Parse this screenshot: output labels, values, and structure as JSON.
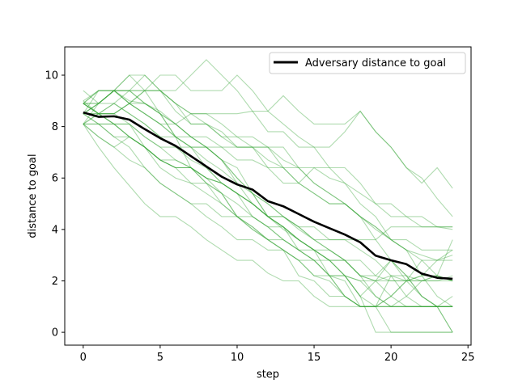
{
  "chart_data": {
    "type": "line",
    "title": "",
    "xlabel": "step",
    "ylabel": "distance to goal",
    "xlim": [
      -1.2,
      25.2
    ],
    "ylim": [
      -0.5,
      11.1
    ],
    "xticks": [
      0,
      5,
      10,
      15,
      20,
      25
    ],
    "yticks": [
      0,
      2,
      4,
      6,
      8,
      10
    ],
    "grid": false,
    "legend_position": "top-right",
    "x": [
      0,
      1,
      2,
      3,
      4,
      5,
      6,
      7,
      8,
      9,
      10,
      11,
      12,
      13,
      14,
      15,
      16,
      17,
      18,
      19,
      20,
      21,
      22,
      23,
      24
    ],
    "mean_series": {
      "name": "Adversary distance to goal",
      "color": "#000000",
      "values": [
        8.55,
        8.38,
        8.4,
        8.27,
        7.9,
        7.55,
        7.25,
        6.85,
        6.45,
        6.05,
        5.75,
        5.55,
        5.1,
        4.9,
        4.6,
        4.3,
        4.05,
        3.8,
        3.5,
        2.98,
        2.8,
        2.65,
        2.28,
        2.12,
        2.08
      ]
    },
    "trajectory_color": "#2ca02c",
    "trajectories": [
      {
        "values": [
          9.4,
          8.9,
          9.4,
          8.9,
          9.4,
          9.4,
          8.9,
          8.5,
          8.5,
          8.1,
          7.6,
          7.2,
          6.7,
          6.4,
          5.8,
          5.4,
          5.0,
          5.0,
          4.5,
          4.1,
          3.6,
          3.6,
          3.2,
          3.2,
          3.2
        ]
      },
      {
        "values": [
          8.1,
          7.2,
          6.4,
          5.7,
          5.0,
          4.5,
          4.5,
          4.1,
          3.6,
          3.2,
          2.8,
          2.8,
          2.3,
          2.0,
          2.0,
          1.4,
          1.0,
          1.0,
          1.0,
          1.0,
          1.4,
          1.0,
          1.0,
          1.0,
          1.0
        ]
      },
      {
        "values": [
          8.9,
          9.4,
          9.4,
          9.4,
          10.0,
          9.4,
          9.4,
          10.0,
          10.6,
          10.0,
          9.4,
          8.6,
          8.6,
          8.1,
          7.6,
          7.2,
          6.4,
          6.4,
          5.8,
          5.0,
          5.0,
          4.5,
          4.5,
          4.1,
          4.1
        ]
      },
      {
        "values": [
          8.5,
          9.4,
          9.4,
          9.4,
          8.9,
          8.5,
          8.1,
          7.6,
          7.6,
          7.2,
          6.7,
          6.7,
          6.4,
          6.4,
          6.4,
          5.8,
          5.4,
          5.0,
          4.5,
          4.0,
          3.6,
          3.2,
          3.0,
          2.8,
          2.8
        ]
      },
      {
        "values": [
          8.5,
          8.9,
          9.4,
          9.4,
          9.4,
          8.5,
          7.6,
          7.2,
          6.7,
          6.3,
          5.8,
          5.4,
          5.0,
          4.5,
          4.0,
          3.6,
          3.2,
          2.8,
          2.2,
          2.0,
          2.0,
          2.0,
          1.4,
          1.0,
          0.0
        ]
      },
      {
        "values": [
          8.1,
          7.6,
          7.2,
          7.6,
          7.2,
          6.7,
          6.4,
          6.4,
          6.0,
          5.8,
          5.4,
          5.0,
          4.5,
          4.1,
          3.6,
          3.2,
          3.2,
          2.8,
          2.2,
          1.4,
          1.0,
          1.0,
          1.0,
          1.0,
          1.0
        ]
      },
      {
        "values": [
          8.9,
          8.9,
          9.4,
          8.9,
          8.5,
          8.1,
          7.6,
          7.6,
          7.2,
          6.7,
          6.0,
          5.4,
          4.5,
          4.1,
          3.6,
          3.2,
          2.2,
          2.2,
          1.4,
          0.0,
          0.0,
          0.0,
          0.0,
          0.0,
          0.0
        ]
      },
      {
        "values": [
          8.1,
          8.9,
          9.4,
          10.0,
          10.0,
          9.4,
          8.9,
          8.1,
          8.1,
          7.6,
          7.2,
          7.2,
          7.2,
          6.4,
          5.8,
          5.4,
          5.0,
          5.0,
          4.5,
          4.1,
          3.6,
          3.2,
          2.8,
          2.2,
          2.0
        ]
      },
      {
        "values": [
          8.5,
          8.1,
          8.1,
          8.1,
          7.6,
          7.2,
          7.2,
          7.2,
          7.2,
          7.2,
          7.2,
          7.2,
          7.2,
          6.7,
          6.4,
          6.4,
          6.0,
          5.8,
          5.4,
          5.0,
          4.5,
          4.5,
          4.1,
          4.1,
          4.0
        ]
      },
      {
        "values": [
          9.0,
          9.4,
          9.4,
          10.0,
          9.4,
          10.0,
          10.0,
          9.4,
          9.4,
          9.4,
          10.0,
          9.4,
          8.6,
          9.2,
          8.6,
          8.1,
          8.1,
          8.1,
          8.6,
          7.8,
          7.2,
          6.4,
          6.0,
          5.2,
          4.5
        ]
      },
      {
        "values": [
          8.9,
          8.5,
          8.1,
          7.6,
          7.2,
          6.7,
          6.7,
          6.4,
          6.0,
          5.4,
          4.5,
          4.5,
          4.1,
          4.1,
          3.6,
          3.2,
          2.8,
          2.8,
          2.2,
          2.0,
          2.2,
          2.0,
          2.0,
          2.0,
          2.0
        ]
      },
      {
        "values": [
          8.1,
          8.5,
          8.5,
          8.1,
          7.6,
          7.2,
          6.7,
          6.4,
          5.8,
          5.4,
          5.0,
          4.5,
          4.1,
          3.6,
          3.2,
          2.8,
          2.8,
          2.2,
          2.0,
          1.4,
          1.0,
          1.4,
          2.0,
          2.2,
          3.6
        ]
      },
      {
        "values": [
          8.9,
          8.9,
          9.4,
          9.4,
          9.4,
          9.4,
          8.6,
          8.1,
          8.1,
          7.8,
          7.2,
          7.2,
          6.4,
          5.8,
          5.8,
          6.4,
          6.4,
          5.8,
          5.0,
          4.5,
          3.6,
          3.2,
          2.2,
          1.4,
          1.0
        ]
      },
      {
        "values": [
          8.5,
          8.1,
          8.1,
          8.1,
          7.2,
          6.4,
          6.0,
          5.8,
          5.8,
          5.4,
          4.5,
          4.0,
          3.6,
          3.2,
          2.8,
          2.2,
          2.2,
          1.4,
          1.0,
          1.0,
          1.0,
          1.0,
          1.0,
          1.0,
          0.0
        ]
      },
      {
        "values": [
          8.9,
          8.5,
          8.5,
          8.9,
          8.5,
          8.1,
          8.1,
          8.5,
          8.1,
          7.6,
          7.6,
          7.6,
          7.2,
          7.2,
          6.4,
          5.8,
          5.4,
          5.0,
          4.5,
          3.6,
          2.8,
          2.2,
          1.4,
          1.0,
          1.0
        ]
      },
      {
        "values": [
          8.1,
          8.1,
          7.6,
          7.2,
          6.4,
          5.8,
          5.4,
          5.0,
          5.0,
          4.5,
          4.5,
          4.1,
          3.6,
          3.2,
          2.8,
          2.8,
          2.2,
          2.2,
          1.4,
          2.0,
          2.8,
          2.0,
          2.0,
          2.0,
          2.2
        ]
      },
      {
        "values": [
          8.5,
          8.9,
          9.4,
          8.9,
          8.9,
          8.5,
          7.6,
          6.4,
          5.8,
          5.0,
          4.5,
          4.1,
          3.6,
          3.6,
          3.2,
          2.8,
          2.2,
          2.0,
          1.0,
          1.0,
          1.0,
          1.0,
          1.0,
          1.0,
          1.0
        ]
      },
      {
        "values": [
          8.9,
          8.5,
          8.1,
          7.6,
          7.2,
          6.7,
          6.4,
          6.4,
          6.0,
          5.8,
          5.4,
          5.0,
          4.5,
          4.5,
          4.1,
          4.1,
          3.6,
          3.6,
          3.2,
          2.8,
          2.2,
          1.4,
          1.0,
          1.0,
          1.4
        ]
      },
      {
        "values": [
          8.1,
          7.6,
          7.2,
          6.7,
          6.4,
          5.8,
          5.4,
          5.0,
          4.5,
          4.1,
          3.6,
          3.6,
          3.2,
          3.2,
          2.8,
          2.2,
          2.0,
          1.4,
          1.0,
          1.0,
          1.4,
          2.0,
          2.2,
          2.8,
          3.2
        ]
      },
      {
        "values": [
          8.5,
          8.5,
          8.9,
          9.4,
          8.9,
          8.5,
          8.1,
          7.6,
          7.2,
          6.7,
          6.4,
          5.4,
          4.5,
          4.0,
          3.6,
          3.2,
          2.8,
          2.2,
          1.4,
          1.0,
          1.0,
          1.0,
          1.0,
          1.0,
          1.0
        ]
      },
      {
        "values": [
          8.9,
          9.4,
          9.4,
          9.0,
          8.9,
          8.6,
          8.1,
          7.6,
          7.2,
          6.7,
          6.0,
          5.4,
          5.0,
          4.5,
          4.1,
          3.6,
          3.2,
          2.8,
          2.2,
          2.2,
          2.8,
          2.2,
          2.0,
          2.2,
          2.0
        ]
      },
      {
        "values": [
          8.1,
          8.5,
          8.5,
          8.9,
          8.5,
          8.1,
          7.6,
          7.2,
          6.4,
          5.8,
          5.4,
          5.0,
          4.5,
          4.1,
          3.2,
          2.8,
          2.2,
          1.4,
          1.0,
          1.0,
          0.0,
          0.0,
          0.0,
          0.0,
          0.0
        ]
      },
      {
        "values": [
          8.5,
          8.9,
          8.9,
          8.5,
          8.1,
          7.6,
          7.6,
          7.2,
          7.2,
          6.7,
          5.8,
          5.0,
          4.5,
          4.5,
          4.1,
          3.6,
          3.6,
          3.6,
          3.6,
          3.6,
          4.1,
          4.1,
          4.1,
          4.1,
          4.1
        ]
      },
      {
        "values": [
          9.0,
          8.5,
          8.1,
          7.6,
          7.2,
          6.7,
          6.4,
          5.8,
          5.4,
          5.0,
          4.5,
          4.0,
          3.6,
          3.2,
          2.2,
          2.0,
          1.4,
          1.4,
          1.0,
          1.0,
          2.2,
          2.2,
          1.4,
          1.0,
          1.0
        ]
      },
      {
        "values": [
          8.1,
          8.1,
          7.6,
          7.6,
          7.2,
          6.7,
          6.4,
          6.4,
          6.0,
          5.8,
          5.4,
          4.5,
          4.1,
          3.6,
          3.2,
          3.2,
          2.8,
          2.8,
          2.8,
          2.2,
          2.0,
          2.0,
          2.8,
          2.8,
          3.0
        ]
      },
      {
        "values": [
          8.5,
          8.5,
          8.5,
          8.9,
          9.4,
          9.4,
          8.9,
          8.5,
          8.5,
          8.5,
          8.5,
          8.6,
          7.8,
          7.8,
          7.2,
          7.2,
          7.2,
          7.8,
          8.6,
          7.8,
          7.2,
          6.4,
          5.8,
          6.4,
          5.6
        ]
      },
      {
        "values": [
          8.9,
          8.5,
          8.9,
          8.5,
          8.1,
          7.6,
          7.2,
          6.7,
          6.4,
          5.8,
          5.4,
          5.0,
          4.5,
          4.1,
          3.6,
          3.2,
          2.8,
          2.2,
          2.0,
          2.0,
          1.4,
          2.0,
          2.2,
          2.2,
          2.0
        ]
      }
    ]
  }
}
